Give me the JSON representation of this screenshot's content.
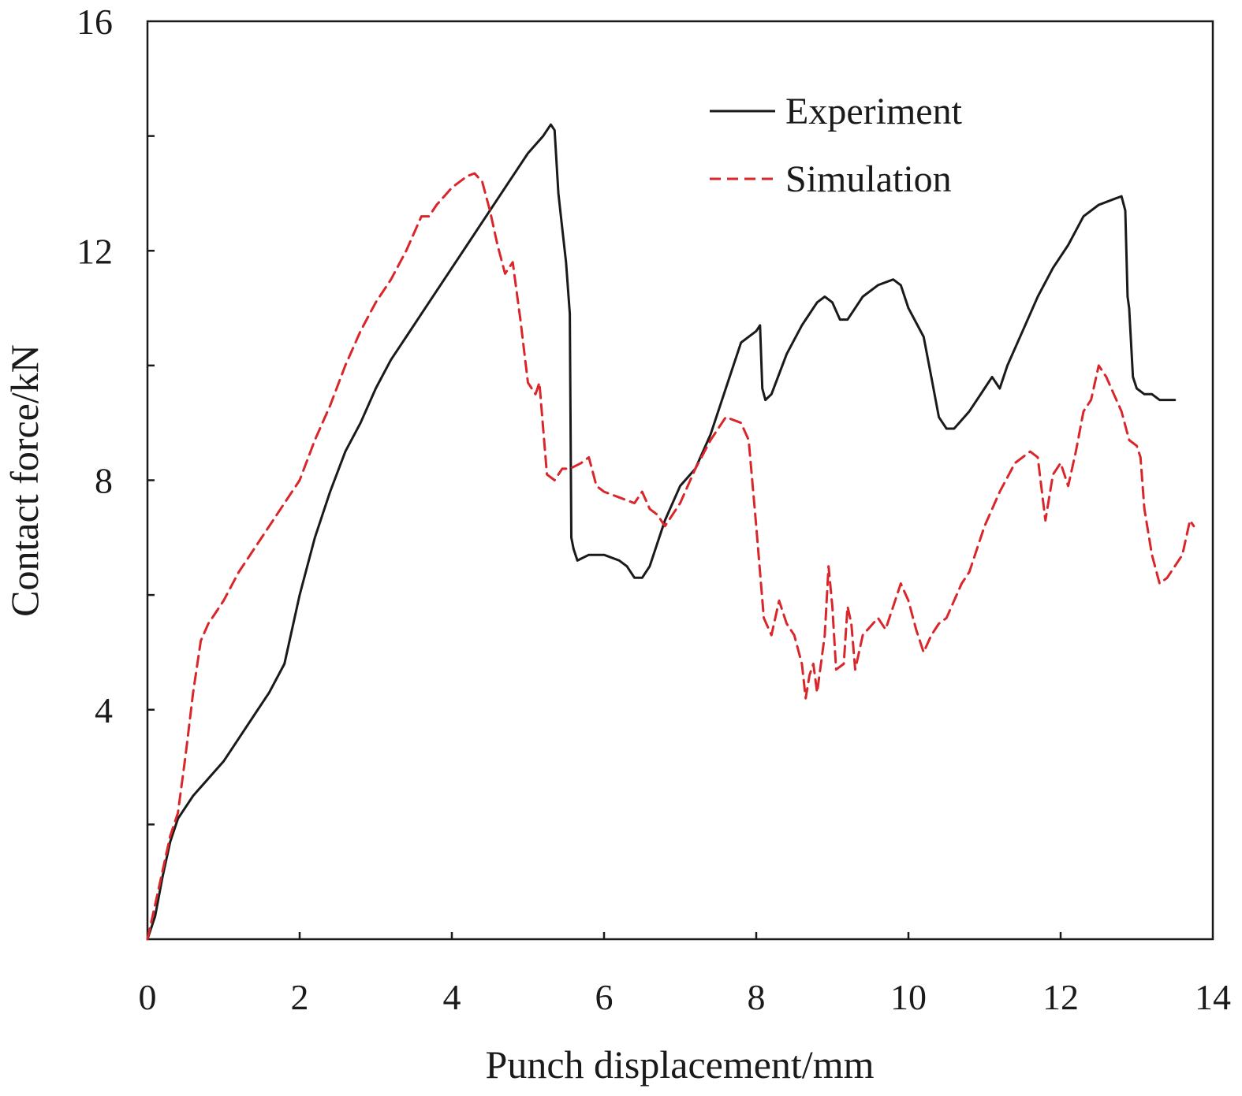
{
  "chart_data": {
    "type": "line",
    "title": "",
    "xlabel": "Punch displacement/mm",
    "ylabel": "Contact force/kN",
    "xlim": [
      0,
      14
    ],
    "ylim": [
      0,
      16
    ],
    "xticks": [
      0,
      2,
      4,
      6,
      8,
      10,
      12,
      14
    ],
    "yticks": [
      4,
      8,
      12,
      16
    ],
    "grid": false,
    "legend_position": "top-right",
    "series": [
      {
        "name": "Experiment",
        "color": "#1a1a1a",
        "style": "solid",
        "points": [
          [
            0.0,
            0.0
          ],
          [
            0.1,
            0.4
          ],
          [
            0.2,
            1.1
          ],
          [
            0.3,
            1.7
          ],
          [
            0.4,
            2.1
          ],
          [
            0.6,
            2.5
          ],
          [
            0.8,
            2.8
          ],
          [
            1.0,
            3.1
          ],
          [
            1.2,
            3.5
          ],
          [
            1.4,
            3.9
          ],
          [
            1.6,
            4.3
          ],
          [
            1.8,
            4.8
          ],
          [
            2.0,
            6.0
          ],
          [
            2.2,
            7.0
          ],
          [
            2.4,
            7.8
          ],
          [
            2.6,
            8.5
          ],
          [
            2.8,
            9.0
          ],
          [
            3.0,
            9.6
          ],
          [
            3.2,
            10.1
          ],
          [
            3.4,
            10.5
          ],
          [
            3.6,
            10.9
          ],
          [
            3.8,
            11.3
          ],
          [
            4.0,
            11.7
          ],
          [
            4.2,
            12.1
          ],
          [
            4.4,
            12.5
          ],
          [
            4.6,
            12.9
          ],
          [
            4.8,
            13.3
          ],
          [
            5.0,
            13.7
          ],
          [
            5.2,
            14.0
          ],
          [
            5.3,
            14.2
          ],
          [
            5.35,
            14.1
          ],
          [
            5.4,
            13.0
          ],
          [
            5.45,
            12.4
          ],
          [
            5.5,
            11.8
          ],
          [
            5.55,
            10.9
          ],
          [
            5.57,
            7.0
          ],
          [
            5.6,
            6.8
          ],
          [
            5.65,
            6.6
          ],
          [
            5.8,
            6.7
          ],
          [
            6.0,
            6.7
          ],
          [
            6.2,
            6.6
          ],
          [
            6.3,
            6.5
          ],
          [
            6.4,
            6.3
          ],
          [
            6.5,
            6.3
          ],
          [
            6.6,
            6.5
          ],
          [
            6.8,
            7.3
          ],
          [
            7.0,
            7.9
          ],
          [
            7.2,
            8.2
          ],
          [
            7.4,
            8.8
          ],
          [
            7.6,
            9.6
          ],
          [
            7.8,
            10.4
          ],
          [
            8.0,
            10.6
          ],
          [
            8.05,
            10.7
          ],
          [
            8.08,
            9.6
          ],
          [
            8.12,
            9.4
          ],
          [
            8.2,
            9.5
          ],
          [
            8.4,
            10.2
          ],
          [
            8.6,
            10.7
          ],
          [
            8.8,
            11.1
          ],
          [
            8.9,
            11.2
          ],
          [
            9.0,
            11.1
          ],
          [
            9.1,
            10.8
          ],
          [
            9.2,
            10.8
          ],
          [
            9.4,
            11.2
          ],
          [
            9.6,
            11.4
          ],
          [
            9.8,
            11.5
          ],
          [
            9.9,
            11.4
          ],
          [
            10.0,
            11.0
          ],
          [
            10.2,
            10.5
          ],
          [
            10.3,
            9.8
          ],
          [
            10.4,
            9.1
          ],
          [
            10.5,
            8.9
          ],
          [
            10.6,
            8.9
          ],
          [
            10.8,
            9.2
          ],
          [
            11.0,
            9.6
          ],
          [
            11.1,
            9.8
          ],
          [
            11.2,
            9.6
          ],
          [
            11.3,
            10.0
          ],
          [
            11.5,
            10.6
          ],
          [
            11.7,
            11.2
          ],
          [
            11.9,
            11.7
          ],
          [
            12.1,
            12.1
          ],
          [
            12.3,
            12.6
          ],
          [
            12.5,
            12.8
          ],
          [
            12.7,
            12.9
          ],
          [
            12.8,
            12.95
          ],
          [
            12.85,
            12.7
          ],
          [
            12.88,
            11.2
          ],
          [
            12.9,
            11.0
          ],
          [
            12.95,
            9.8
          ],
          [
            13.0,
            9.6
          ],
          [
            13.1,
            9.5
          ],
          [
            13.2,
            9.5
          ],
          [
            13.3,
            9.4
          ],
          [
            13.4,
            9.4
          ],
          [
            13.5,
            9.4
          ]
        ]
      },
      {
        "name": "Simulation",
        "color": "#d9262b",
        "style": "dashed",
        "points": [
          [
            0.0,
            0.0
          ],
          [
            0.1,
            0.6
          ],
          [
            0.2,
            1.2
          ],
          [
            0.3,
            1.8
          ],
          [
            0.4,
            2.2
          ],
          [
            0.5,
            3.2
          ],
          [
            0.6,
            4.3
          ],
          [
            0.7,
            5.2
          ],
          [
            0.8,
            5.5
          ],
          [
            0.9,
            5.7
          ],
          [
            1.0,
            5.9
          ],
          [
            1.2,
            6.4
          ],
          [
            1.4,
            6.8
          ],
          [
            1.6,
            7.2
          ],
          [
            1.8,
            7.6
          ],
          [
            2.0,
            8.0
          ],
          [
            2.2,
            8.7
          ],
          [
            2.4,
            9.3
          ],
          [
            2.6,
            10.0
          ],
          [
            2.8,
            10.6
          ],
          [
            3.0,
            11.1
          ],
          [
            3.2,
            11.5
          ],
          [
            3.4,
            12.0
          ],
          [
            3.6,
            12.6
          ],
          [
            3.7,
            12.6
          ],
          [
            3.8,
            12.8
          ],
          [
            4.0,
            13.1
          ],
          [
            4.2,
            13.3
          ],
          [
            4.3,
            13.35
          ],
          [
            4.4,
            13.2
          ],
          [
            4.5,
            12.7
          ],
          [
            4.6,
            12.1
          ],
          [
            4.7,
            11.6
          ],
          [
            4.8,
            11.8
          ],
          [
            4.9,
            10.8
          ],
          [
            5.0,
            9.7
          ],
          [
            5.1,
            9.5
          ],
          [
            5.15,
            9.7
          ],
          [
            5.25,
            8.1
          ],
          [
            5.35,
            8.0
          ],
          [
            5.45,
            8.2
          ],
          [
            5.55,
            8.2
          ],
          [
            5.7,
            8.3
          ],
          [
            5.8,
            8.4
          ],
          [
            5.9,
            7.9
          ],
          [
            6.0,
            7.8
          ],
          [
            6.2,
            7.7
          ],
          [
            6.4,
            7.6
          ],
          [
            6.5,
            7.8
          ],
          [
            6.6,
            7.5
          ],
          [
            6.7,
            7.4
          ],
          [
            6.8,
            7.2
          ],
          [
            7.0,
            7.6
          ],
          [
            7.2,
            8.2
          ],
          [
            7.4,
            8.7
          ],
          [
            7.6,
            9.1
          ],
          [
            7.8,
            9.0
          ],
          [
            7.9,
            8.7
          ],
          [
            8.0,
            7.2
          ],
          [
            8.1,
            5.6
          ],
          [
            8.2,
            5.3
          ],
          [
            8.3,
            5.9
          ],
          [
            8.4,
            5.5
          ],
          [
            8.5,
            5.3
          ],
          [
            8.6,
            4.8
          ],
          [
            8.65,
            4.2
          ],
          [
            8.7,
            4.6
          ],
          [
            8.75,
            4.8
          ],
          [
            8.8,
            4.3
          ],
          [
            8.9,
            5.3
          ],
          [
            8.95,
            6.5
          ],
          [
            9.0,
            5.8
          ],
          [
            9.05,
            4.7
          ],
          [
            9.15,
            4.8
          ],
          [
            9.2,
            5.8
          ],
          [
            9.25,
            5.5
          ],
          [
            9.3,
            4.7
          ],
          [
            9.4,
            5.3
          ],
          [
            9.6,
            5.6
          ],
          [
            9.7,
            5.4
          ],
          [
            9.8,
            5.8
          ],
          [
            9.9,
            6.2
          ],
          [
            10.0,
            5.9
          ],
          [
            10.1,
            5.4
          ],
          [
            10.2,
            5.0
          ],
          [
            10.3,
            5.3
          ],
          [
            10.4,
            5.5
          ],
          [
            10.5,
            5.6
          ],
          [
            10.6,
            5.9
          ],
          [
            10.7,
            6.2
          ],
          [
            10.8,
            6.4
          ],
          [
            11.0,
            7.2
          ],
          [
            11.2,
            7.8
          ],
          [
            11.4,
            8.3
          ],
          [
            11.6,
            8.5
          ],
          [
            11.7,
            8.4
          ],
          [
            11.8,
            7.3
          ],
          [
            11.9,
            8.1
          ],
          [
            12.0,
            8.3
          ],
          [
            12.1,
            7.9
          ],
          [
            12.2,
            8.5
          ],
          [
            12.3,
            9.2
          ],
          [
            12.4,
            9.4
          ],
          [
            12.5,
            10.0
          ],
          [
            12.6,
            9.8
          ],
          [
            12.7,
            9.5
          ],
          [
            12.8,
            9.2
          ],
          [
            12.9,
            8.7
          ],
          [
            13.0,
            8.6
          ],
          [
            13.05,
            8.4
          ],
          [
            13.1,
            7.5
          ],
          [
            13.2,
            6.7
          ],
          [
            13.3,
            6.2
          ],
          [
            13.4,
            6.3
          ],
          [
            13.5,
            6.5
          ],
          [
            13.6,
            6.7
          ],
          [
            13.7,
            7.3
          ],
          [
            13.75,
            7.2
          ]
        ]
      }
    ]
  }
}
